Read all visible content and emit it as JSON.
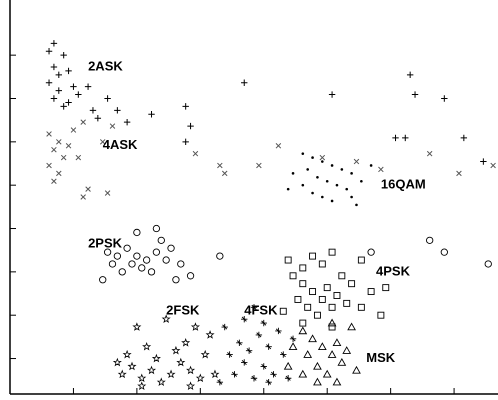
{
  "chart_data": {
    "type": "scatter",
    "title": "",
    "xlabel": "",
    "ylabel": "",
    "grid": false,
    "legend": "none",
    "xlim": [
      0,
      1
    ],
    "ylim": [
      0,
      1
    ],
    "x_ticks": [
      0.13,
      0.26,
      0.39,
      0.52,
      0.65,
      0.78,
      0.91
    ],
    "y_ticks": [
      0.09,
      0.2,
      0.31,
      0.42,
      0.53,
      0.64,
      0.75,
      0.86
    ],
    "series": [
      {
        "name": "2ASK",
        "marker": "plus",
        "color": "#000000",
        "points": [
          [
            0.09,
            0.89
          ],
          [
            0.08,
            0.87
          ],
          [
            0.11,
            0.86
          ],
          [
            0.09,
            0.83
          ],
          [
            0.12,
            0.82
          ],
          [
            0.1,
            0.81
          ],
          [
            0.08,
            0.79
          ],
          [
            0.13,
            0.78
          ],
          [
            0.1,
            0.77
          ],
          [
            0.09,
            0.75
          ],
          [
            0.12,
            0.74
          ],
          [
            0.11,
            0.73
          ],
          [
            0.14,
            0.76
          ],
          [
            0.16,
            0.78
          ],
          [
            0.18,
            0.7
          ],
          [
            0.17,
            0.72
          ],
          [
            0.22,
            0.72
          ],
          [
            0.29,
            0.71
          ],
          [
            0.24,
            0.69
          ],
          [
            0.37,
            0.68
          ],
          [
            0.36,
            0.64
          ],
          [
            0.48,
            0.79
          ],
          [
            0.66,
            0.76
          ],
          [
            0.82,
            0.81
          ],
          [
            0.83,
            0.76
          ],
          [
            0.89,
            0.75
          ],
          [
            0.79,
            0.65
          ],
          [
            0.81,
            0.65
          ],
          [
            0.93,
            0.65
          ],
          [
            0.97,
            0.59
          ],
          [
            0.36,
            0.73
          ],
          [
            0.2,
            0.75
          ]
        ]
      },
      {
        "name": "4ASK",
        "marker": "x",
        "color": "#555555",
        "points": [
          [
            0.08,
            0.66
          ],
          [
            0.1,
            0.64
          ],
          [
            0.09,
            0.62
          ],
          [
            0.11,
            0.6
          ],
          [
            0.08,
            0.58
          ],
          [
            0.1,
            0.56
          ],
          [
            0.09,
            0.54
          ],
          [
            0.12,
            0.63
          ],
          [
            0.14,
            0.6
          ],
          [
            0.13,
            0.67
          ],
          [
            0.15,
            0.69
          ],
          [
            0.21,
            0.68
          ],
          [
            0.19,
            0.64
          ],
          [
            0.16,
            0.52
          ],
          [
            0.15,
            0.5
          ],
          [
            0.2,
            0.51
          ],
          [
            0.38,
            0.61
          ],
          [
            0.43,
            0.58
          ],
          [
            0.44,
            0.56
          ],
          [
            0.51,
            0.58
          ],
          [
            0.55,
            0.63
          ],
          [
            0.71,
            0.59
          ],
          [
            0.76,
            0.57
          ],
          [
            0.86,
            0.61
          ],
          [
            0.92,
            0.56
          ],
          [
            0.99,
            0.58
          ],
          [
            0.64,
            0.6
          ]
        ]
      },
      {
        "name": "16QAM",
        "marker": "dot",
        "color": "#000000",
        "points": [
          [
            0.6,
            0.61
          ],
          [
            0.62,
            0.6
          ],
          [
            0.64,
            0.59
          ],
          [
            0.66,
            0.58
          ],
          [
            0.68,
            0.57
          ],
          [
            0.7,
            0.56
          ],
          [
            0.61,
            0.57
          ],
          [
            0.63,
            0.55
          ],
          [
            0.65,
            0.54
          ],
          [
            0.67,
            0.53
          ],
          [
            0.69,
            0.52
          ],
          [
            0.6,
            0.53
          ],
          [
            0.62,
            0.51
          ],
          [
            0.64,
            0.5
          ],
          [
            0.66,
            0.49
          ],
          [
            0.7,
            0.5
          ],
          [
            0.58,
            0.56
          ],
          [
            0.57,
            0.52
          ],
          [
            0.72,
            0.54
          ],
          [
            0.74,
            0.58
          ],
          [
            0.71,
            0.48
          ]
        ]
      },
      {
        "name": "2PSK",
        "marker": "circle",
        "color": "#000000",
        "points": [
          [
            0.2,
            0.36
          ],
          [
            0.22,
            0.35
          ],
          [
            0.24,
            0.37
          ],
          [
            0.26,
            0.35
          ],
          [
            0.28,
            0.34
          ],
          [
            0.3,
            0.36
          ],
          [
            0.32,
            0.34
          ],
          [
            0.25,
            0.33
          ],
          [
            0.27,
            0.32
          ],
          [
            0.29,
            0.31
          ],
          [
            0.23,
            0.31
          ],
          [
            0.21,
            0.33
          ],
          [
            0.31,
            0.39
          ],
          [
            0.33,
            0.37
          ],
          [
            0.35,
            0.33
          ],
          [
            0.37,
            0.3
          ],
          [
            0.3,
            0.42
          ],
          [
            0.26,
            0.41
          ],
          [
            0.43,
            0.35
          ],
          [
            0.86,
            0.39
          ],
          [
            0.89,
            0.36
          ],
          [
            0.98,
            0.33
          ],
          [
            0.74,
            0.36
          ],
          [
            0.19,
            0.29
          ],
          [
            0.34,
            0.29
          ]
        ]
      },
      {
        "name": "4PSK",
        "marker": "square",
        "color": "#000000",
        "points": [
          [
            0.58,
            0.3
          ],
          [
            0.6,
            0.28
          ],
          [
            0.62,
            0.26
          ],
          [
            0.64,
            0.24
          ],
          [
            0.66,
            0.22
          ],
          [
            0.59,
            0.24
          ],
          [
            0.61,
            0.22
          ],
          [
            0.63,
            0.2
          ],
          [
            0.65,
            0.27
          ],
          [
            0.67,
            0.25
          ],
          [
            0.69,
            0.23
          ],
          [
            0.6,
            0.32
          ],
          [
            0.62,
            0.35
          ],
          [
            0.64,
            0.33
          ],
          [
            0.68,
            0.3
          ],
          [
            0.7,
            0.28
          ],
          [
            0.72,
            0.22
          ],
          [
            0.74,
            0.26
          ],
          [
            0.76,
            0.2
          ],
          [
            0.77,
            0.27
          ],
          [
            0.57,
            0.34
          ],
          [
            0.66,
            0.36
          ],
          [
            0.72,
            0.34
          ],
          [
            0.56,
            0.21
          ],
          [
            0.6,
            0.18
          ],
          [
            0.66,
            0.17
          ]
        ]
      },
      {
        "name": "MSK",
        "marker": "triangle",
        "color": "#000000",
        "points": [
          [
            0.6,
            0.16
          ],
          [
            0.62,
            0.14
          ],
          [
            0.64,
            0.12
          ],
          [
            0.66,
            0.1
          ],
          [
            0.68,
            0.08
          ],
          [
            0.61,
            0.1
          ],
          [
            0.63,
            0.07
          ],
          [
            0.65,
            0.05
          ],
          [
            0.67,
            0.13
          ],
          [
            0.69,
            0.11
          ],
          [
            0.6,
            0.05
          ],
          [
            0.63,
            0.03
          ],
          [
            0.67,
            0.03
          ],
          [
            0.58,
            0.12
          ],
          [
            0.7,
            0.17
          ],
          [
            0.66,
            0.18
          ],
          [
            0.71,
            0.06
          ],
          [
            0.57,
            0.07
          ]
        ]
      },
      {
        "name": "2FSK",
        "marker": "star",
        "color": "#000000",
        "points": [
          [
            0.23,
            0.05
          ],
          [
            0.25,
            0.07
          ],
          [
            0.27,
            0.04
          ],
          [
            0.29,
            0.06
          ],
          [
            0.31,
            0.03
          ],
          [
            0.33,
            0.05
          ],
          [
            0.35,
            0.08
          ],
          [
            0.37,
            0.06
          ],
          [
            0.39,
            0.04
          ],
          [
            0.24,
            0.1
          ],
          [
            0.28,
            0.12
          ],
          [
            0.3,
            0.09
          ],
          [
            0.34,
            0.11
          ],
          [
            0.36,
            0.13
          ],
          [
            0.4,
            0.1
          ],
          [
            0.42,
            0.05
          ],
          [
            0.26,
            0.17
          ],
          [
            0.32,
            0.19
          ],
          [
            0.38,
            0.17
          ],
          [
            0.27,
            0.02
          ],
          [
            0.37,
            0.02
          ],
          [
            0.22,
            0.08
          ],
          [
            0.41,
            0.15
          ]
        ]
      },
      {
        "name": "4FSK",
        "marker": "plusbox",
        "color": "#000000",
        "points": [
          [
            0.46,
            0.05
          ],
          [
            0.48,
            0.08
          ],
          [
            0.5,
            0.04
          ],
          [
            0.52,
            0.07
          ],
          [
            0.54,
            0.05
          ],
          [
            0.56,
            0.1
          ],
          [
            0.47,
            0.13
          ],
          [
            0.49,
            0.11
          ],
          [
            0.51,
            0.15
          ],
          [
            0.53,
            0.12
          ],
          [
            0.55,
            0.16
          ],
          [
            0.48,
            0.19
          ],
          [
            0.5,
            0.22
          ],
          [
            0.52,
            0.18
          ],
          [
            0.57,
            0.04
          ],
          [
            0.58,
            0.14
          ],
          [
            0.45,
            0.1
          ],
          [
            0.53,
            0.03
          ],
          [
            0.43,
            0.03
          ],
          [
            0.44,
            0.17
          ]
        ]
      }
    ],
    "annotations": [
      {
        "text": "2ASK",
        "x": 0.16,
        "y": 0.83
      },
      {
        "text": "4ASK",
        "x": 0.19,
        "y": 0.63
      },
      {
        "text": "16QAM",
        "x": 0.76,
        "y": 0.53
      },
      {
        "text": "2PSK",
        "x": 0.16,
        "y": 0.38
      },
      {
        "text": "4PSK",
        "x": 0.75,
        "y": 0.31
      },
      {
        "text": "2FSK",
        "x": 0.32,
        "y": 0.21
      },
      {
        "text": "4FSK",
        "x": 0.48,
        "y": 0.21
      },
      {
        "text": "MSK",
        "x": 0.73,
        "y": 0.09
      }
    ]
  }
}
